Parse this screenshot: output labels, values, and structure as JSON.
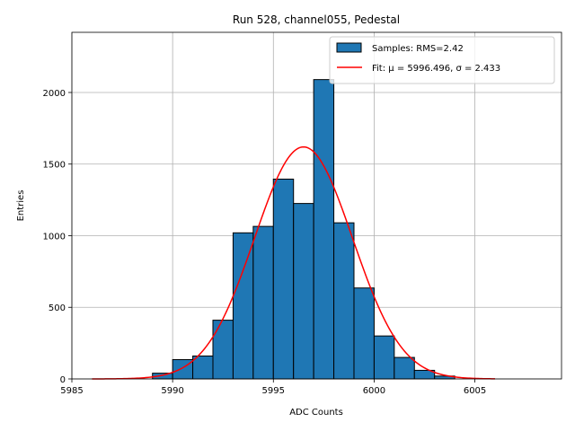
{
  "chart_data": {
    "type": "bar",
    "title": "Run 528, channel055, Pedestal",
    "xlabel": "ADC Counts",
    "ylabel": "Entries",
    "xlim": [
      5985,
      6009.3
    ],
    "ylim": [
      0,
      2420
    ],
    "grid": true,
    "legend_placement": "top-right",
    "x_ticks": [
      5985,
      5990,
      5995,
      6000,
      6005
    ],
    "y_ticks": [
      0,
      500,
      1000,
      1500,
      2000
    ],
    "histogram": {
      "name": "Samples: RMS=2.42",
      "color": "#1f77b4",
      "edge_color": "#000000",
      "bin_width": 1,
      "bin_starts": [
        5986,
        5987,
        5988,
        5989,
        5990,
        5991,
        5992,
        5993,
        5994,
        5995,
        5996,
        5997,
        5998,
        5999,
        6000,
        6001,
        6002,
        6003,
        6004,
        6005
      ],
      "values": [
        0,
        0,
        0,
        40,
        135,
        160,
        410,
        1020,
        1065,
        1395,
        1225,
        2090,
        1090,
        635,
        300,
        150,
        60,
        20,
        0,
        0
      ]
    },
    "fit": {
      "name": "Fit: μ = 5996.496, σ = 2.433",
      "color": "#ff0000",
      "mu": 5996.496,
      "sigma": 2.433,
      "amplitude": 1620,
      "x_range": [
        5986,
        6006
      ]
    }
  }
}
